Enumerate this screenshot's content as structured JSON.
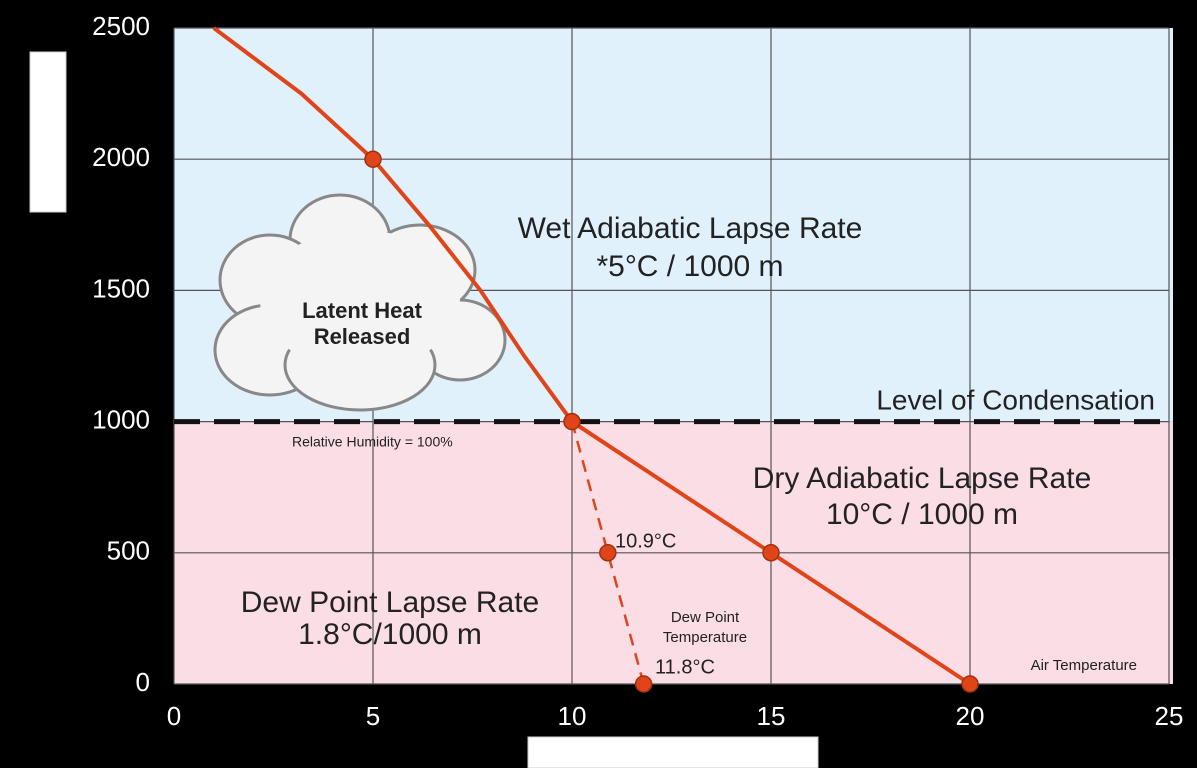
{
  "chart_data": {
    "type": "line",
    "xlim": [
      0,
      25
    ],
    "xticks": [
      0,
      5,
      10,
      15,
      20,
      25
    ],
    "ylim": [
      0,
      2500
    ],
    "yticks": [
      0,
      500,
      1000,
      1500,
      2000,
      2500
    ],
    "grid": true,
    "condensation_level": 1000,
    "series": [
      {
        "color": "#e0451a",
        "dashed": false,
        "x": [
          20,
          15,
          10,
          8.8,
          7.7,
          6.4,
          5,
          3.2,
          1
        ],
        "values": [
          0,
          500,
          1000,
          1250,
          1500,
          1750,
          2000,
          2250,
          2500
        ]
      },
      {
        "color": "#e0451a",
        "dashed": true,
        "x": [
          10,
          10.9,
          11.8
        ],
        "values": [
          1000,
          500,
          0
        ]
      }
    ],
    "points": {
      "color": "#e0451a",
      "x": [
        5,
        10,
        10.9,
        11.8,
        15,
        20
      ],
      "values": [
        2000,
        1000,
        500,
        0,
        500,
        0
      ]
    },
    "annotations": [
      "Wet Adiabatic Lapse Rate",
      "*5°C / 1000 m",
      "Latent Heat",
      "Released",
      "Level of Condensation",
      "Relative Humidity = 100%",
      "Dry Adiabatic Lapse Rate",
      "10°C / 1000 m",
      "10.9°C",
      "Dew Point Lapse Rate",
      "1.8°C/1000 m",
      "Dew Point",
      "Temperature",
      "11.8°C",
      "Air Temperature"
    ]
  }
}
